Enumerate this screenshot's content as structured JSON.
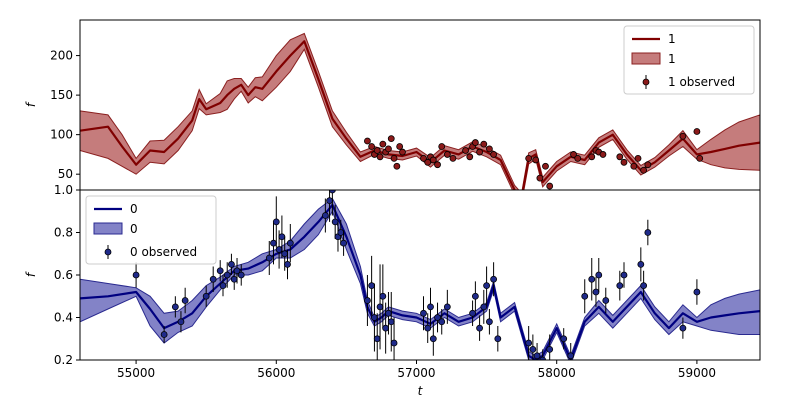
{
  "chart_data": {
    "type": "line",
    "xlabel": "t",
    "xlim": [
      54600,
      59450
    ],
    "xticks": [
      55000,
      56000,
      57000,
      58000,
      59000
    ],
    "panels": [
      {
        "id": "top",
        "ylabel": "f",
        "ylim": [
          30,
          245
        ],
        "yticks": [
          50,
          100,
          150,
          200
        ],
        "legend_position": "top-right",
        "legend": [
          "1",
          "1",
          "1 observed"
        ],
        "colors": {
          "line": "#800000",
          "band": "#b25050",
          "band_edge": "#8b2020",
          "points": "#8b1a1a"
        },
        "series": {
          "line_name": "1",
          "band_name": "1",
          "obs_name": "1 observed",
          "line": {
            "x": [
              54600,
              54800,
              54900,
              55000,
              55100,
              55200,
              55300,
              55400,
              55450,
              55500,
              55600,
              55650,
              55700,
              55750,
              55800,
              55850,
              55900,
              56000,
              56100,
              56200,
              56300,
              56400,
              56500,
              56600,
              56700,
              56800,
              56900,
              57000,
              57100,
              57200,
              57300,
              57400,
              57500,
              57600,
              57700,
              57750,
              57800,
              57850,
              57900,
              58000,
              58100,
              58200,
              58300,
              58400,
              58500,
              58600,
              58700,
              58800,
              58900,
              59000,
              59100,
              59200,
              59300,
              59450
            ],
            "y": [
              105,
              110,
              85,
              62,
              80,
              78,
              95,
              118,
              145,
              132,
              140,
              150,
              158,
              163,
              150,
              160,
              158,
              180,
              200,
              218,
              170,
              120,
              95,
              72,
              80,
              75,
              73,
              78,
              65,
              80,
              75,
              85,
              78,
              68,
              30,
              20,
              70,
              75,
              40,
              60,
              72,
              68,
              90,
              100,
              75,
              55,
              65,
              80,
              95,
              75,
              78,
              82,
              86,
              90
            ]
          },
          "band": {
            "x": [
              54600,
              54800,
              54900,
              55000,
              55100,
              55200,
              55300,
              55400,
              55450,
              55500,
              55600,
              55650,
              55700,
              55750,
              55800,
              55850,
              55900,
              56000,
              56100,
              56200,
              56300,
              56400,
              56500,
              56600,
              56700,
              56800,
              56900,
              57000,
              57100,
              57200,
              57300,
              57400,
              57500,
              57600,
              57700,
              57750,
              57800,
              57850,
              57900,
              58000,
              58100,
              58200,
              58300,
              58400,
              58500,
              58600,
              58700,
              58800,
              58900,
              59000,
              59100,
              59200,
              59300,
              59450
            ],
            "lo": [
              80,
              70,
              60,
              50,
              65,
              63,
              80,
              105,
              133,
              125,
              128,
              132,
              145,
              155,
              140,
              148,
              143,
              160,
              180,
              208,
              160,
              110,
              87,
              66,
              75,
              70,
              68,
              73,
              59,
              74,
              69,
              79,
              72,
              62,
              24,
              14,
              63,
              69,
              34,
              54,
              66,
              62,
              84,
              94,
              69,
              49,
              59,
              73,
              85,
              69,
              62,
              58,
              56,
              55
            ],
            "hi": [
              130,
              125,
              100,
              70,
              92,
              93,
              110,
              130,
              157,
              139,
              152,
              168,
              171,
              171,
              160,
              172,
              173,
              200,
              220,
              228,
              180,
              130,
              103,
              78,
              85,
              80,
              78,
              83,
              71,
              86,
              81,
              91,
              84,
              74,
              36,
              26,
              77,
              81,
              46,
              66,
              78,
              74,
              96,
              106,
              81,
              61,
              71,
              87,
              105,
              81,
              94,
              106,
              116,
              125
            ]
          },
          "observed": {
            "x": [
              56650,
              56680,
              56700,
              56720,
              56740,
              56760,
              56780,
              56800,
              56820,
              56840,
              56860,
              56880,
              56900,
              57050,
              57080,
              57100,
              57120,
              57150,
              57180,
              57220,
              57260,
              57350,
              57380,
              57400,
              57420,
              57450,
              57480,
              57520,
              57550,
              57800,
              57850,
              57880,
              57920,
              57950,
              58120,
              58150,
              58250,
              58280,
              58300,
              58330,
              58450,
              58480,
              58550,
              58580,
              58620,
              58650,
              58900,
              59000,
              59020
            ],
            "y": [
              92,
              85,
              75,
              80,
              72,
              88,
              78,
              82,
              95,
              70,
              60,
              85,
              78,
              70,
              65,
              72,
              68,
              62,
              85,
              75,
              70,
              80,
              72,
              85,
              90,
              78,
              88,
              82,
              75,
              70,
              68,
              45,
              60,
              35,
              75,
              70,
              72,
              80,
              78,
              75,
              72,
              65,
              60,
              70,
              55,
              62,
              98,
              104,
              70
            ]
          }
        }
      },
      {
        "id": "bottom",
        "ylabel": "f",
        "ylim": [
          0.2,
          1.0
        ],
        "yticks": [
          0.2,
          0.4,
          0.6,
          0.8,
          1.0
        ],
        "legend_position": "top-left",
        "legend": [
          "0",
          "0",
          "0 observed"
        ],
        "colors": {
          "line": "#000080",
          "band": "#5a5ab4",
          "band_edge": "#2a2a90",
          "points": "#1f2a8a"
        },
        "series": {
          "line_name": "0",
          "band_name": "0",
          "obs_name": "0 observed",
          "line": {
            "x": [
              54600,
              54800,
              55000,
              55100,
              55200,
              55300,
              55400,
              55500,
              55600,
              55700,
              55800,
              55900,
              56000,
              56100,
              56200,
              56300,
              56400,
              56500,
              56600,
              56650,
              56700,
              56750,
              56800,
              56900,
              57000,
              57100,
              57200,
              57300,
              57400,
              57500,
              57550,
              57600,
              57700,
              57800,
              57850,
              57900,
              58000,
              58100,
              58200,
              58300,
              58400,
              58500,
              58600,
              58700,
              58800,
              58900,
              59000,
              59100,
              59200,
              59300,
              59450
            ],
            "y": [
              0.49,
              0.5,
              0.52,
              0.44,
              0.35,
              0.38,
              0.42,
              0.5,
              0.56,
              0.62,
              0.63,
              0.66,
              0.7,
              0.72,
              0.78,
              0.85,
              0.93,
              0.78,
              0.6,
              0.45,
              0.38,
              0.4,
              0.43,
              0.41,
              0.4,
              0.37,
              0.42,
              0.38,
              0.4,
              0.45,
              0.55,
              0.4,
              0.45,
              0.22,
              0.2,
              0.22,
              0.35,
              0.2,
              0.38,
              0.45,
              0.38,
              0.45,
              0.52,
              0.42,
              0.35,
              0.42,
              0.38,
              0.4,
              0.41,
              0.42,
              0.43
            ]
          },
          "band": {
            "x": [
              54600,
              54800,
              55000,
              55100,
              55200,
              55300,
              55400,
              55500,
              55600,
              55700,
              55800,
              55900,
              56000,
              56100,
              56200,
              56300,
              56400,
              56500,
              56600,
              56650,
              56700,
              56750,
              56800,
              56900,
              57000,
              57100,
              57200,
              57300,
              57400,
              57500,
              57550,
              57600,
              57700,
              57800,
              57850,
              57900,
              58000,
              58100,
              58200,
              58300,
              58400,
              58500,
              58600,
              58700,
              58800,
              58900,
              59000,
              59100,
              59200,
              59300,
              59450
            ],
            "lo": [
              0.38,
              0.44,
              0.5,
              0.36,
              0.28,
              0.33,
              0.36,
              0.45,
              0.53,
              0.6,
              0.6,
              0.62,
              0.68,
              0.68,
              0.72,
              0.79,
              0.9,
              0.72,
              0.56,
              0.42,
              0.36,
              0.38,
              0.41,
              0.39,
              0.38,
              0.35,
              0.4,
              0.36,
              0.38,
              0.43,
              0.53,
              0.38,
              0.43,
              0.2,
              0.18,
              0.2,
              0.33,
              0.18,
              0.36,
              0.42,
              0.35,
              0.42,
              0.49,
              0.39,
              0.32,
              0.38,
              0.36,
              0.34,
              0.33,
              0.32,
              0.32
            ],
            "hi": [
              0.58,
              0.56,
              0.54,
              0.5,
              0.42,
              0.43,
              0.48,
              0.55,
              0.59,
              0.64,
              0.66,
              0.7,
              0.72,
              0.76,
              0.84,
              0.91,
              0.96,
              0.84,
              0.64,
              0.48,
              0.4,
              0.42,
              0.45,
              0.43,
              0.42,
              0.39,
              0.44,
              0.4,
              0.42,
              0.47,
              0.57,
              0.42,
              0.47,
              0.24,
              0.22,
              0.24,
              0.37,
              0.22,
              0.4,
              0.48,
              0.41,
              0.48,
              0.55,
              0.45,
              0.38,
              0.46,
              0.4,
              0.46,
              0.49,
              0.51,
              0.53
            ]
          },
          "observed": {
            "x": [
              55000,
              55200,
              55280,
              55320,
              55350,
              55500,
              55550,
              55600,
              55620,
              55650,
              55680,
              55700,
              55720,
              55750,
              55950,
              55980,
              56000,
              56020,
              56040,
              56060,
              56080,
              56100,
              56350,
              56380,
              56400,
              56420,
              56440,
              56460,
              56480,
              56650,
              56680,
              56700,
              56720,
              56740,
              56760,
              56780,
              56800,
              56820,
              56840,
              57050,
              57080,
              57100,
              57120,
              57150,
              57180,
              57220,
              57400,
              57420,
              57450,
              57480,
              57500,
              57520,
              57550,
              57580,
              57800,
              57830,
              57860,
              57900,
              57950,
              58050,
              58100,
              58200,
              58250,
              58280,
              58300,
              58350,
              58450,
              58480,
              58600,
              58620,
              58650,
              58900,
              59000
            ],
            "y": [
              0.6,
              0.32,
              0.45,
              0.38,
              0.48,
              0.5,
              0.58,
              0.62,
              0.55,
              0.6,
              0.65,
              0.58,
              0.62,
              0.6,
              0.68,
              0.75,
              0.85,
              0.72,
              0.78,
              0.7,
              0.65,
              0.75,
              0.88,
              0.95,
              1.0,
              0.85,
              0.78,
              0.8,
              0.75,
              0.48,
              0.55,
              0.4,
              0.3,
              0.45,
              0.5,
              0.35,
              0.42,
              0.38,
              0.28,
              0.42,
              0.35,
              0.45,
              0.3,
              0.4,
              0.38,
              0.45,
              0.42,
              0.5,
              0.35,
              0.45,
              0.55,
              0.38,
              0.58,
              0.3,
              0.28,
              0.25,
              0.22,
              0.2,
              0.25,
              0.3,
              0.22,
              0.5,
              0.58,
              0.52,
              0.6,
              0.48,
              0.55,
              0.6,
              0.65,
              0.55,
              0.8,
              0.35,
              0.52
            ],
            "err": [
              0.06,
              0.04,
              0.05,
              0.05,
              0.06,
              0.05,
              0.06,
              0.05,
              0.05,
              0.06,
              0.05,
              0.05,
              0.06,
              0.05,
              0.08,
              0.1,
              0.12,
              0.09,
              0.1,
              0.08,
              0.07,
              0.09,
              0.08,
              0.1,
              0.12,
              0.08,
              0.07,
              0.06,
              0.06,
              0.12,
              0.14,
              0.16,
              0.12,
              0.2,
              0.15,
              0.12,
              0.1,
              0.14,
              0.12,
              0.08,
              0.07,
              0.09,
              0.08,
              0.07,
              0.06,
              0.08,
              0.06,
              0.07,
              0.06,
              0.08,
              0.09,
              0.06,
              0.08,
              0.06,
              0.08,
              0.07,
              0.06,
              0.05,
              0.07,
              0.05,
              0.06,
              0.08,
              0.1,
              0.07,
              0.08,
              0.06,
              0.07,
              0.06,
              0.08,
              0.07,
              0.06,
              0.05,
              0.06
            ]
          }
        }
      }
    ]
  }
}
